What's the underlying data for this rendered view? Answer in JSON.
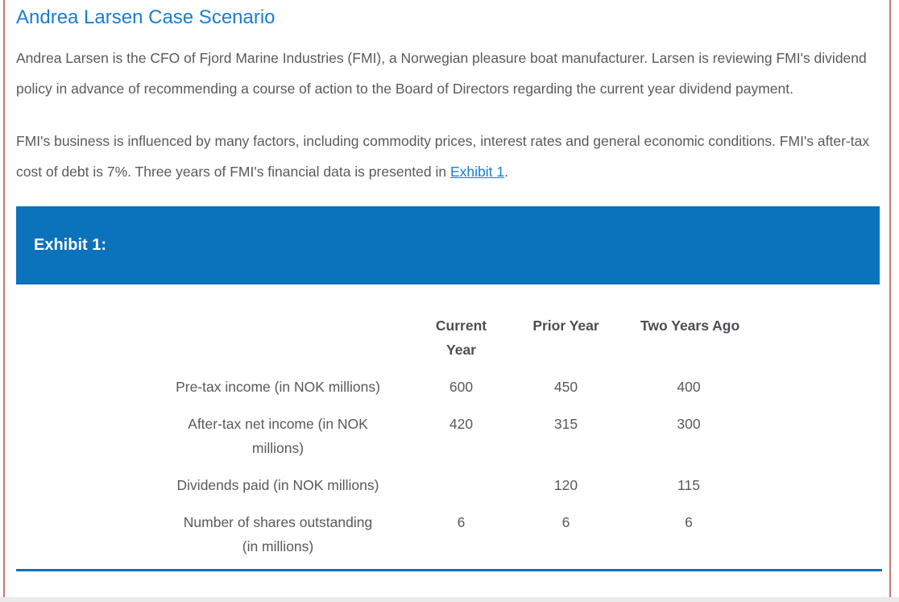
{
  "page": {
    "title": "Andrea Larsen Case Scenario",
    "intro": "Andrea Larsen is the CFO of Fjord Marine Industries (FMI), a Norwegian pleasure boat manufacturer. Larsen is reviewing FMI's dividend policy in advance of recommending a course of action to the Board of Directors regarding the current year dividend payment.",
    "body": {
      "before": "FMI's business is influenced by many factors, including commodity prices, interest rates and general economic conditions. FMI's after-tax cost of debt is 7%. Three years of FMI's financial data is presented in ",
      "link_label": "Exhibit 1",
      "after": "."
    }
  },
  "exhibit": {
    "banner_label": "Exhibit 1:",
    "table": {
      "columns": [
        [
          "Current",
          "Year"
        ],
        [
          "Prior Year"
        ],
        [
          "Two Years Ago"
        ]
      ],
      "rows": [
        {
          "label": [
            "Pre-tax income (in NOK millions)"
          ],
          "values": [
            "600",
            "450",
            "400"
          ]
        },
        {
          "label": [
            "After-tax net income (in NOK",
            "millions)"
          ],
          "values": [
            "420",
            "315",
            "300"
          ]
        },
        {
          "label": [
            "Dividends paid (in NOK millions)"
          ],
          "values": [
            "",
            "120",
            "115"
          ]
        },
        {
          "label": [
            "Number of shares outstanding",
            "(in millions)"
          ],
          "values": [
            "6",
            "6",
            "6"
          ]
        }
      ]
    }
  },
  "colors": {
    "accent_blue": "#0b72bc",
    "title_blue": "#1b7cd0",
    "link_blue": "#1b7cd0",
    "text_gray": "#595a5e",
    "table_header_gray": "#4d4e53",
    "table_text_gray": "#58595d",
    "panel_border": "#c9786c",
    "divider_blue": "#0f72ba",
    "bottom_strip": "#eaeaea"
  }
}
